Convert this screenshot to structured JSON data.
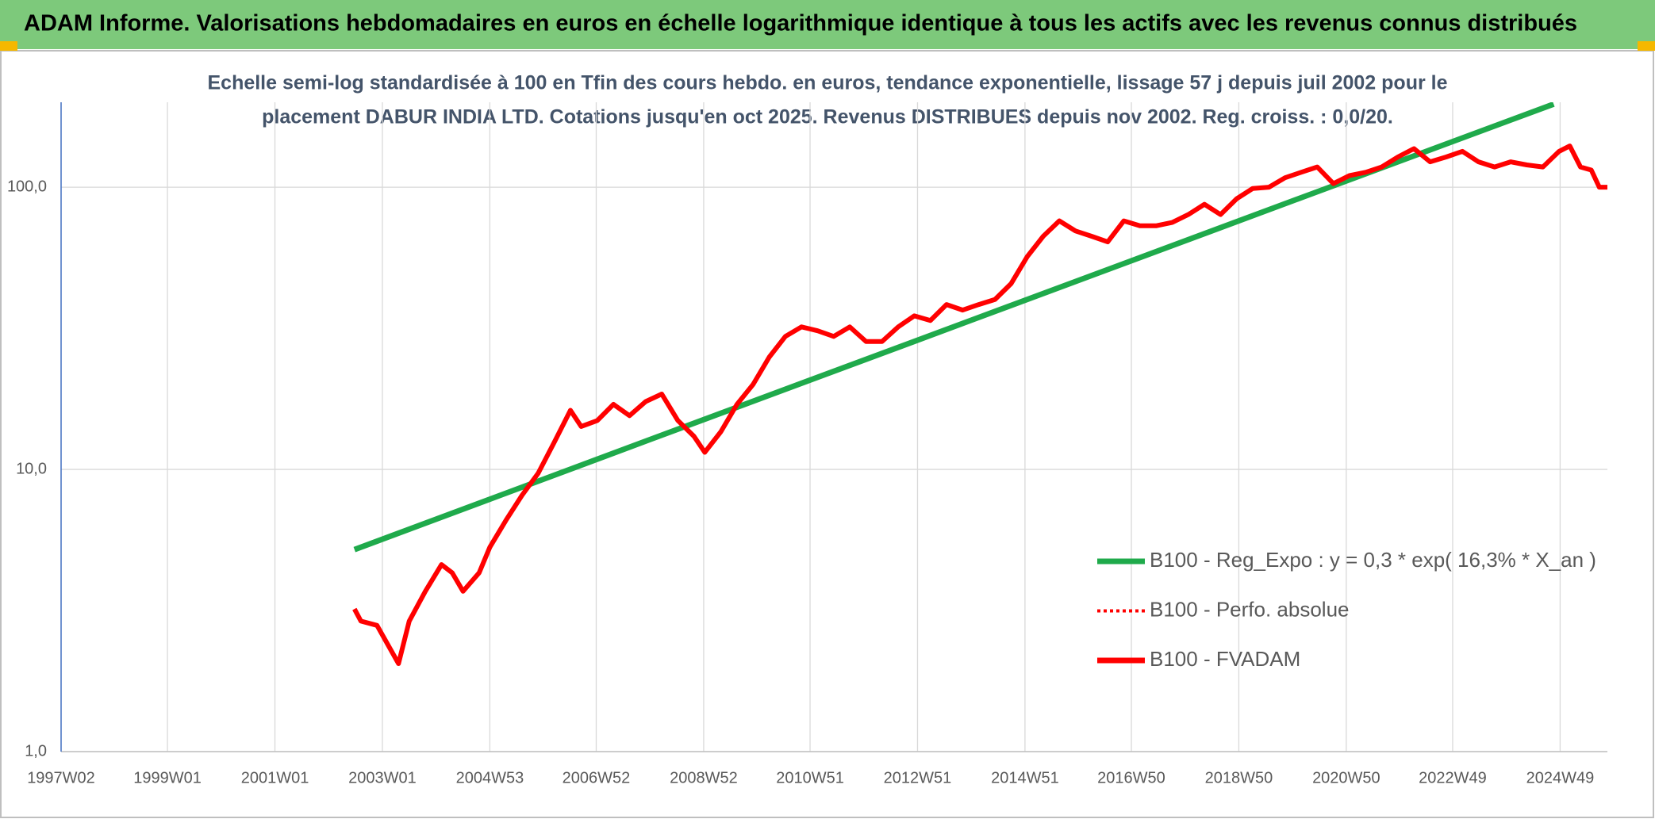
{
  "header": {
    "title": "ADAM Informe. Valorisations hebdomadaires en euros en échelle logarithmique identique à tous les actifs avec les revenus connus distribués"
  },
  "chart_data": {
    "type": "line",
    "title_lines": [
      "Echelle semi-log standardisée à 100 en Tfin des cours hebdo. en euros, tendance exponentielle, lissage 57 j depuis juil 2002 pour le",
      "placement DABUR INDIA LTD. Cotations jusqu'en oct 2025. Revenus DISTRIBUES depuis nov 2002. Reg. croiss. : 0,0/20."
    ],
    "xlim": [
      1997.02,
      2025.8
    ],
    "xticks": [
      {
        "value": 1997.02,
        "label": "1997W02"
      },
      {
        "value": 1999.0,
        "label": "1999W01"
      },
      {
        "value": 2001.0,
        "label": "2001W01"
      },
      {
        "value": 2003.0,
        "label": "2003W01"
      },
      {
        "value": 2005.0,
        "label": "2004W53"
      },
      {
        "value": 2006.98,
        "label": "2006W52"
      },
      {
        "value": 2008.98,
        "label": "2008W52"
      },
      {
        "value": 2010.96,
        "label": "2010W51"
      },
      {
        "value": 2012.96,
        "label": "2012W51"
      },
      {
        "value": 2014.96,
        "label": "2014W51"
      },
      {
        "value": 2016.94,
        "label": "2016W50"
      },
      {
        "value": 2018.94,
        "label": "2018W50"
      },
      {
        "value": 2020.94,
        "label": "2020W50"
      },
      {
        "value": 2022.92,
        "label": "2022W49"
      },
      {
        "value": 2024.92,
        "label": "2024W49"
      }
    ],
    "ylim": [
      1,
      200
    ],
    "yticks": [
      {
        "value": 1,
        "label": "1,0"
      },
      {
        "value": 10,
        "label": "10,0"
      },
      {
        "value": 100,
        "label": "100,0"
      }
    ],
    "log_y": true,
    "grid": true,
    "series": [
      {
        "name": "B100 - Reg_Expo : y = 0,3 * exp( 16,3% *  X_an )",
        "color": "#1faa4b",
        "style": "solid",
        "x": [
          2002.48,
          2008.0,
          2014.0,
          2020.0,
          2024.8
        ],
        "values": [
          5.2,
          12.8,
          34.0,
          90.3,
          197
        ]
      },
      {
        "name": "B100 - Perfo. absolue",
        "color": "#ff0000",
        "style": "dotted",
        "x": [
          2002.48,
          2002.6,
          2002.9,
          2003.3,
          2003.5,
          2003.8,
          2004.1,
          2004.3,
          2004.5,
          2004.8,
          2005.0,
          2005.3,
          2005.6,
          2005.9,
          2006.2,
          2006.5,
          2006.7,
          2007.0,
          2007.3,
          2007.6,
          2007.9,
          2008.2,
          2008.5,
          2008.8,
          2009.0,
          2009.3,
          2009.6,
          2009.9,
          2010.2,
          2010.5,
          2010.8,
          2011.1,
          2011.4,
          2011.7,
          2012.0,
          2012.3,
          2012.6,
          2012.9,
          2013.2,
          2013.5,
          2013.8,
          2014.1,
          2014.4,
          2014.7,
          2015.0,
          2015.3,
          2015.6,
          2015.9,
          2016.2,
          2016.5,
          2016.8,
          2017.1,
          2017.4,
          2017.7,
          2018.0,
          2018.3,
          2018.6,
          2018.9,
          2019.2,
          2019.5,
          2019.8,
          2020.1,
          2020.4,
          2020.7,
          2021.0,
          2021.3,
          2021.6,
          2021.9,
          2022.2,
          2022.5,
          2022.8,
          2023.1,
          2023.4,
          2023.7,
          2024.0,
          2024.3,
          2024.6,
          2024.9,
          2025.1,
          2025.3,
          2025.5,
          2025.65,
          2025.8
        ],
        "values": [
          3.2,
          2.9,
          2.8,
          2.05,
          2.9,
          3.7,
          4.6,
          4.3,
          3.7,
          4.3,
          5.3,
          6.6,
          8.1,
          9.7,
          12.5,
          16.2,
          14.2,
          14.9,
          17,
          15.5,
          17.4,
          18.5,
          14.9,
          13.1,
          11.5,
          13.6,
          17,
          20,
          25,
          29.6,
          32,
          31,
          29.6,
          32,
          28.4,
          28.4,
          32,
          35,
          33.7,
          38.4,
          36.7,
          38.4,
          40,
          45.5,
          56.7,
          67,
          76,
          70,
          67,
          64,
          76,
          73,
          73,
          75,
          80,
          87,
          80,
          91,
          99,
          100,
          108,
          113,
          118,
          103,
          110,
          113,
          118,
          128,
          137,
          123,
          128,
          134,
          123,
          118,
          123,
          120,
          118,
          134,
          140,
          118,
          115,
          100,
          100
        ]
      },
      {
        "name": "B100 - FVADAM",
        "color": "#ff0000",
        "style": "solid",
        "x": [
          2002.48,
          2002.6,
          2002.9,
          2003.3,
          2003.5,
          2003.8,
          2004.1,
          2004.3,
          2004.5,
          2004.8,
          2005.0,
          2005.3,
          2005.6,
          2005.9,
          2006.2,
          2006.5,
          2006.7,
          2007.0,
          2007.3,
          2007.6,
          2007.9,
          2008.2,
          2008.5,
          2008.8,
          2009.0,
          2009.3,
          2009.6,
          2009.9,
          2010.2,
          2010.5,
          2010.8,
          2011.1,
          2011.4,
          2011.7,
          2012.0,
          2012.3,
          2012.6,
          2012.9,
          2013.2,
          2013.5,
          2013.8,
          2014.1,
          2014.4,
          2014.7,
          2015.0,
          2015.3,
          2015.6,
          2015.9,
          2016.2,
          2016.5,
          2016.8,
          2017.1,
          2017.4,
          2017.7,
          2018.0,
          2018.3,
          2018.6,
          2018.9,
          2019.2,
          2019.5,
          2019.8,
          2020.1,
          2020.4,
          2020.7,
          2021.0,
          2021.3,
          2021.6,
          2021.9,
          2022.2,
          2022.5,
          2022.8,
          2023.1,
          2023.4,
          2023.7,
          2024.0,
          2024.3,
          2024.6,
          2024.9,
          2025.1,
          2025.3,
          2025.5,
          2025.65,
          2025.8
        ],
        "values": [
          3.2,
          2.9,
          2.8,
          2.05,
          2.9,
          3.7,
          4.6,
          4.3,
          3.7,
          4.3,
          5.3,
          6.6,
          8.1,
          9.7,
          12.5,
          16.2,
          14.2,
          14.9,
          17,
          15.5,
          17.4,
          18.5,
          14.9,
          13.1,
          11.5,
          13.6,
          17,
          20,
          25,
          29.6,
          32,
          31,
          29.6,
          32,
          28.4,
          28.4,
          32,
          35,
          33.7,
          38.4,
          36.7,
          38.4,
          40,
          45.5,
          56.7,
          67,
          76,
          70,
          67,
          64,
          76,
          73,
          73,
          75,
          80,
          87,
          80,
          91,
          99,
          100,
          108,
          113,
          118,
          103,
          110,
          113,
          118,
          128,
          137,
          123,
          128,
          134,
          123,
          118,
          123,
          120,
          118,
          134,
          140,
          118,
          115,
          100,
          100
        ]
      }
    ]
  }
}
